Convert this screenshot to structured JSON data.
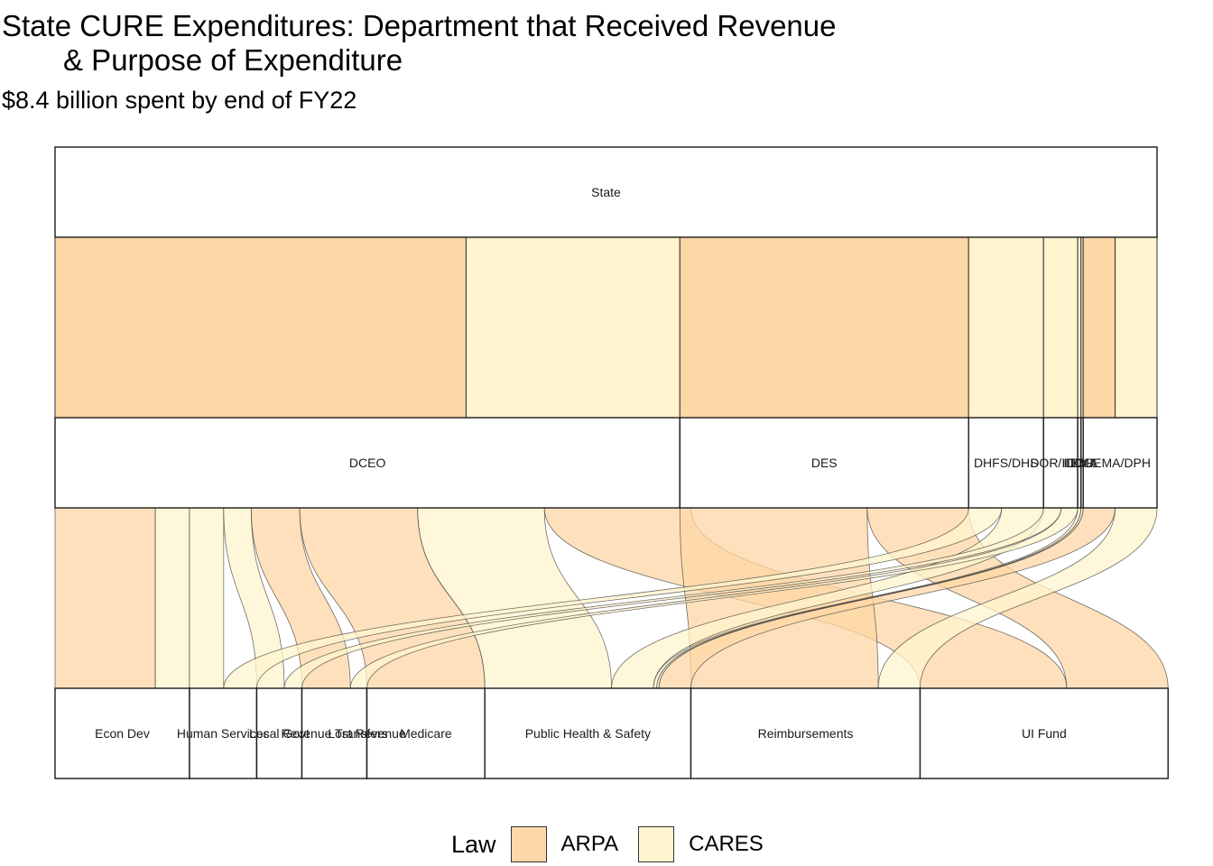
{
  "chart_data": {
    "type": "alluvial",
    "title_line1": "State CURE Expenditures: Department that Received Revenue",
    "title_line2": "& Purpose of Expenditure",
    "subtitle": "$8.4 billion spent by end of FY22",
    "legend": {
      "title": "Law",
      "entries": [
        {
          "name": "ARPA",
          "color": "#FDD7A6"
        },
        {
          "name": "CARES",
          "color": "#FFF4CD"
        }
      ]
    },
    "axes": [
      {
        "name": "Source",
        "nodes": [
          "State"
        ]
      },
      {
        "name": "Department",
        "nodes": [
          "DCEO",
          "DES",
          "DHFS/DHS",
          "DOR/IDOL",
          "IDOR",
          "IEMA",
          "IEMA/DPH"
        ]
      },
      {
        "name": "Purpose",
        "nodes": [
          "Econ Dev",
          "Human Services",
          "Local Govt",
          "Revenue Transfers",
          "Lost Revenue",
          "Medicare",
          "Public Health & Safety",
          "Reimbursements",
          "UI Fund"
        ]
      }
    ],
    "state_to_dept": [
      {
        "dept": "DCEO",
        "law": "ARPA",
        "share": 0.373
      },
      {
        "dept": "DCEO",
        "law": "CARES",
        "share": 0.194
      },
      {
        "dept": "DES",
        "law": "ARPA",
        "share": 0.262
      },
      {
        "dept": "DHFS/DHS",
        "law": "CARES",
        "share": 0.068
      },
      {
        "dept": "DOR/IDOL",
        "law": "CARES",
        "share": 0.031
      },
      {
        "dept": "IDOR",
        "law": "CARES",
        "share": 0.003
      },
      {
        "dept": "IEMA",
        "law": "CARES",
        "share": 0.002
      },
      {
        "dept": "IEMA/DPH",
        "law": "ARPA",
        "share": 0.029
      },
      {
        "dept": "IEMA/DPH",
        "law": "CARES",
        "share": 0.038
      }
    ],
    "dept_to_purpose": [
      {
        "dept": "DCEO",
        "purpose": "Econ Dev",
        "law": "ARPA",
        "share": 0.091
      },
      {
        "dept": "DCEO",
        "purpose": "Econ Dev",
        "law": "CARES",
        "share": 0.031
      },
      {
        "dept": "DCEO",
        "purpose": "Human Services",
        "law": "CARES",
        "share": 0.031
      },
      {
        "dept": "DCEO",
        "purpose": "Local Govt",
        "law": "CARES",
        "share": 0.025
      },
      {
        "dept": "DCEO",
        "purpose": "Revenue Transfers",
        "law": "ARPA",
        "share": 0.044
      },
      {
        "dept": "DCEO",
        "purpose": "Medicare",
        "law": "ARPA",
        "share": 0.107
      },
      {
        "dept": "DCEO",
        "purpose": "Public Health & Safety",
        "law": "CARES",
        "share": 0.115
      },
      {
        "dept": "DCEO",
        "purpose": "UI Fund",
        "law": "ARPA",
        "share": 0.133
      },
      {
        "dept": "DES",
        "purpose": "Reimbursements",
        "law": "ARPA",
        "share": 0.17
      },
      {
        "dept": "DES",
        "purpose": "UI Fund",
        "law": "ARPA",
        "share": 0.092
      },
      {
        "dept": "DHFS/DHS",
        "purpose": "Human Services",
        "law": "CARES",
        "share": 0.03
      },
      {
        "dept": "DHFS/DHS",
        "purpose": "Public Health & Safety",
        "law": "CARES",
        "share": 0.038
      },
      {
        "dept": "DOR/IDOL",
        "purpose": "Local Govt",
        "law": "CARES",
        "share": 0.016
      },
      {
        "dept": "DOR/IDOL",
        "purpose": "Revenue Transfers",
        "law": "CARES",
        "share": 0.015
      },
      {
        "dept": "IDOR",
        "purpose": "Public Health & Safety",
        "law": "CARES",
        "share": 0.003
      },
      {
        "dept": "IEMA",
        "purpose": "Public Health & Safety",
        "law": "CARES",
        "share": 0.002
      },
      {
        "dept": "IEMA/DPH",
        "purpose": "Public Health & Safety",
        "law": "ARPA",
        "share": 0.029
      },
      {
        "dept": "IEMA/DPH",
        "purpose": "Reimbursements",
        "law": "CARES",
        "share": 0.038
      }
    ]
  }
}
